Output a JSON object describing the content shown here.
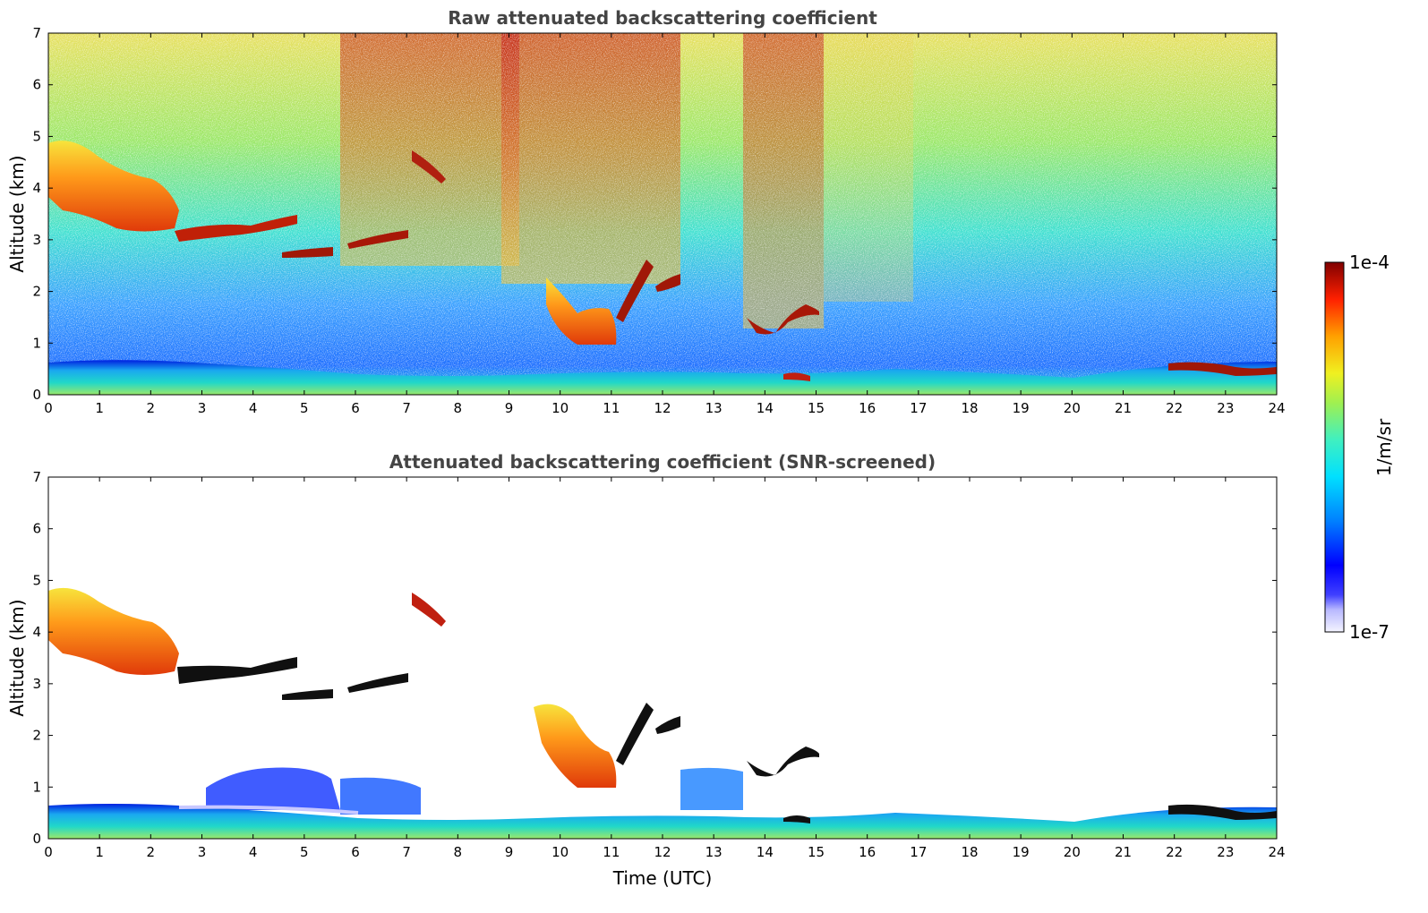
{
  "chart_data": [
    {
      "type": "heatmap",
      "title": "Raw attenuated backscattering coefficient",
      "xlabel": "",
      "ylabel": "Altitude (km)",
      "xlim": [
        0,
        24
      ],
      "ylim": [
        0,
        7
      ],
      "xticks": [
        "0",
        "1",
        "2",
        "3",
        "4",
        "5",
        "6",
        "7",
        "8",
        "9",
        "10",
        "11",
        "12",
        "13",
        "14",
        "15",
        "16",
        "17",
        "18",
        "19",
        "20",
        "21",
        "22",
        "23",
        "24"
      ],
      "yticks": [
        "0",
        "1",
        "2",
        "3",
        "4",
        "5",
        "6",
        "7"
      ],
      "features": [
        {
          "name": "boundary-layer",
          "x": [
            0,
            24
          ],
          "y_top_km": 0.6
        },
        {
          "name": "cloud-layer-1",
          "x": [
            0,
            2.6
          ],
          "y_km": [
            3.2,
            4.9
          ]
        },
        {
          "name": "cloud-layer-2",
          "x": [
            2.5,
            4.8
          ],
          "y_km": [
            2.9,
            3.5
          ]
        },
        {
          "name": "cloud-layer-3",
          "x": [
            4.4,
            5.6
          ],
          "y_km": [
            2.7,
            2.8
          ]
        },
        {
          "name": "cloud-layer-4",
          "x": [
            5.8,
            7.1
          ],
          "y_km": [
            2.9,
            3.2
          ]
        },
        {
          "name": "cloud-layer-5",
          "x": [
            9.8,
            11.2
          ],
          "y_km": [
            1.0,
            2.0
          ]
        },
        {
          "name": "cloud-layer-6",
          "x": [
            11.2,
            12.3
          ],
          "y_km": [
            1.8,
            2.7
          ]
        },
        {
          "name": "cloud-layer-7",
          "x": [
            13.6,
            15.1
          ],
          "y_km": [
            1.1,
            1.8
          ]
        },
        {
          "name": "cloud-layer-8",
          "x": [
            21.9,
            24
          ],
          "y_km": [
            0.4,
            0.6
          ]
        }
      ]
    },
    {
      "type": "heatmap",
      "title": "Attenuated backscattering coefficient (SNR-screened)",
      "xlabel": "Time (UTC)",
      "ylabel": "Altitude (km)",
      "xlim": [
        0,
        24
      ],
      "ylim": [
        0,
        7
      ],
      "xticks": [
        "0",
        "1",
        "2",
        "3",
        "4",
        "5",
        "6",
        "7",
        "8",
        "9",
        "10",
        "11",
        "12",
        "13",
        "14",
        "15",
        "16",
        "17",
        "18",
        "19",
        "20",
        "21",
        "22",
        "23",
        "24"
      ],
      "yticks": [
        "0",
        "1",
        "2",
        "3",
        "4",
        "5",
        "6",
        "7"
      ]
    }
  ],
  "colorbar": {
    "label": "1/m/sr",
    "max_label": "1e-4",
    "min_label": "1e-7",
    "scale": "log",
    "colormap": "jet"
  }
}
